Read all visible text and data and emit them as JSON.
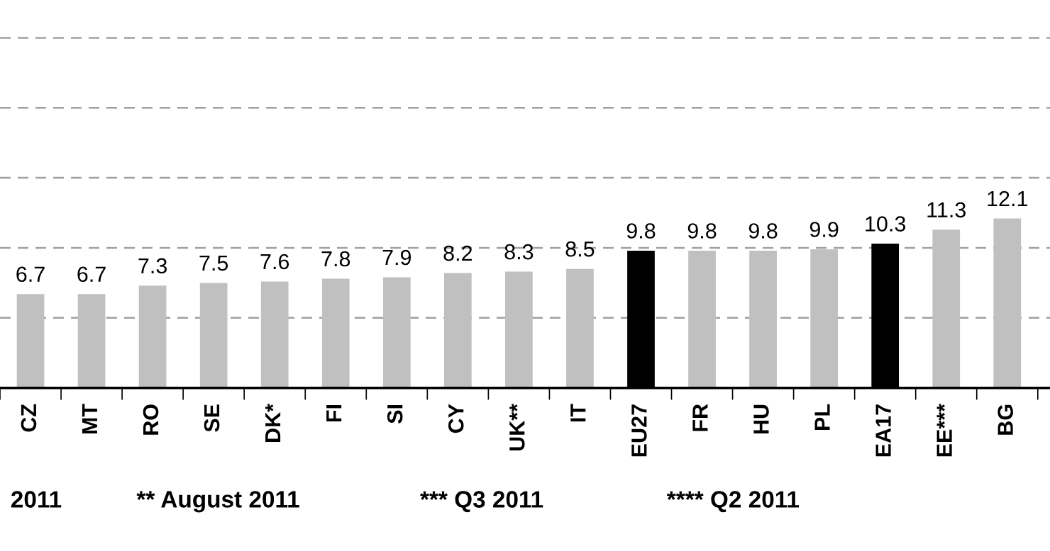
{
  "chart_data": {
    "type": "bar",
    "categories": [
      "CZ",
      "MT",
      "RO",
      "SE",
      "DK*",
      "FI",
      "SI",
      "CY",
      "UK**",
      "IT",
      "EU27",
      "FR",
      "HU",
      "PL",
      "EA17",
      "EE***",
      "BG"
    ],
    "values": [
      6.7,
      6.7,
      7.3,
      7.5,
      7.6,
      7.8,
      7.9,
      8.2,
      8.3,
      8.5,
      9.8,
      9.8,
      9.8,
      9.9,
      10.3,
      11.3,
      12.1
    ],
    "colors": [
      "#c0c0c0",
      "#c0c0c0",
      "#c0c0c0",
      "#c0c0c0",
      "#c0c0c0",
      "#c0c0c0",
      "#c0c0c0",
      "#c0c0c0",
      "#c0c0c0",
      "#c0c0c0",
      "#000000",
      "#c0c0c0",
      "#c0c0c0",
      "#c0c0c0",
      "#000000",
      "#c0c0c0",
      "#c0c0c0"
    ],
    "data_labels": true,
    "ref_lines": [
      {
        "axis": "y",
        "value": 5,
        "color": "#a0a0a0",
        "line_style": "dashed"
      },
      {
        "axis": "y",
        "value": 10,
        "color": "#a0a0a0",
        "line_style": "dashed"
      },
      {
        "axis": "y",
        "value": 15,
        "color": "#a0a0a0",
        "line_style": "dashed"
      },
      {
        "axis": "y",
        "value": 20,
        "color": "#a0a0a0",
        "line_style": "dashed"
      },
      {
        "axis": "y",
        "value": 25,
        "color": "#a0a0a0",
        "line_style": "dashed"
      }
    ],
    "tick_labels": "x",
    "annotations": [
      "2011",
      "** August 2011",
      "*** Q3 2011",
      "**** Q2 2011"
    ]
  }
}
